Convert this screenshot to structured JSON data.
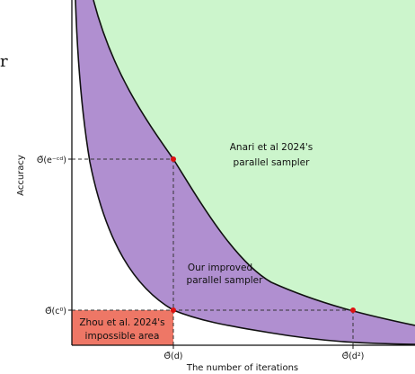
{
  "side_fragment": "r",
  "regions": {
    "anari": {
      "label_line1": "Anari et al 2024's",
      "label_line2": "parallel sampler",
      "color": "#ccf5cc"
    },
    "improved": {
      "label_line1": "Our improved",
      "label_line2": "parallel sampler",
      "color": "#b08fd0"
    },
    "zhou": {
      "label_line1": "Zhou et al. 2024's",
      "label_line2": "impossible area",
      "color": "#ee7766"
    }
  },
  "axes": {
    "xlabel": "The number of iterations",
    "ylabel": "Accuracy",
    "x_ticks": {
      "left": "Θ̃(d)",
      "right": "Θ̃(d²)"
    },
    "y_ticks": {
      "upper": "Θ̃(e⁻ᶜᵈ)",
      "lower": "Θ̃(c⁰)"
    }
  },
  "colors": {
    "point": "#dd1111",
    "curve": "#111111",
    "guide": "#333333"
  }
}
